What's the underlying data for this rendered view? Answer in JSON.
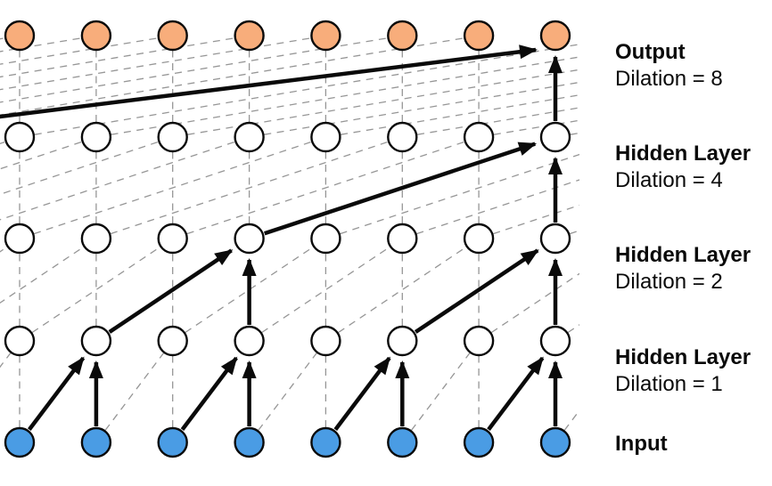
{
  "diagram_type": "dilated-causal-convolution-network",
  "colors": {
    "background": "#ffffff",
    "input_node": "#4A9CE4",
    "hidden_node": "#ffffff",
    "output_node": "#F8AD7B",
    "node_stroke": "#0a0a0a",
    "arrow": "#0a0a0a",
    "dashed_line": "#969696",
    "label_text": "#0a0a0a"
  },
  "network": {
    "num_columns": 8,
    "highlighted_column_index": 7,
    "dilations_between_layers_top_to_bottom": [
      8,
      4,
      2,
      1
    ],
    "layers_top_to_bottom": [
      {
        "name": "Output",
        "dilation_label": "Dilation = 8",
        "node_color_key": "output_node"
      },
      {
        "name": "Hidden Layer",
        "dilation_label": "Dilation = 4",
        "node_color_key": "hidden_node"
      },
      {
        "name": "Hidden Layer",
        "dilation_label": "Dilation = 2",
        "node_color_key": "hidden_node"
      },
      {
        "name": "Hidden Layer",
        "dilation_label": "Dilation = 1",
        "node_color_key": "hidden_node"
      },
      {
        "name": "Input",
        "dilation_label": "",
        "node_color_key": "input_node"
      }
    ]
  }
}
